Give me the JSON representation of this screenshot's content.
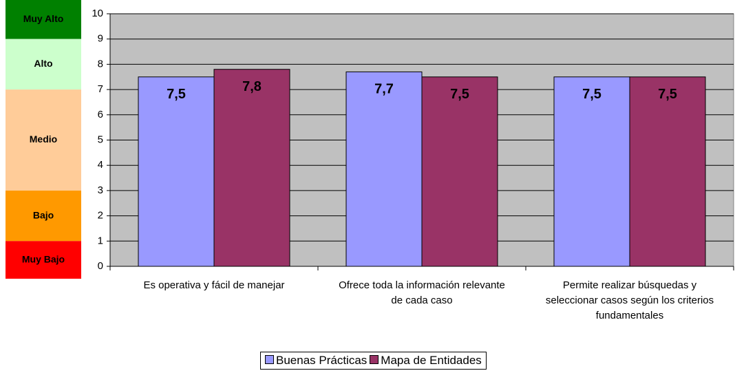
{
  "chart_data": {
    "type": "bar",
    "categories": [
      "Es operativa y fácil de manejar",
      "Ofrece toda la información relevante de cada caso",
      "Permite realizar búsquedas y seleccionar casos según los criterios fundamentales"
    ],
    "series": [
      {
        "name": "Buenas Prácticas",
        "color": "#9999ff",
        "values": [
          7.5,
          7.7,
          7.5
        ],
        "value_labels": [
          "7,5",
          "7,7",
          "7,5"
        ]
      },
      {
        "name": "Mapa de Entidades",
        "color": "#993366",
        "values": [
          7.8,
          7.5,
          7.5
        ],
        "value_labels": [
          "7,8",
          "7,5",
          "7,5"
        ]
      }
    ],
    "ylim": [
      0,
      10
    ],
    "yticks": [
      0,
      1,
      2,
      3,
      4,
      5,
      6,
      7,
      8,
      9,
      10
    ],
    "grid": true,
    "bands": [
      {
        "name": "Muy Alto",
        "from": 9,
        "to": 10,
        "color": "#008000"
      },
      {
        "name": "Alto",
        "from": 7,
        "to": 9,
        "color": "#ccffcc"
      },
      {
        "name": "Medio",
        "from": 3,
        "to": 7,
        "color": "#ffcc99"
      },
      {
        "name": "Bajo",
        "from": 1,
        "to": 3,
        "color": "#ff9900"
      },
      {
        "name": "Muy Bajo",
        "from": 0,
        "to": 1,
        "color": "#ff0000"
      }
    ]
  }
}
